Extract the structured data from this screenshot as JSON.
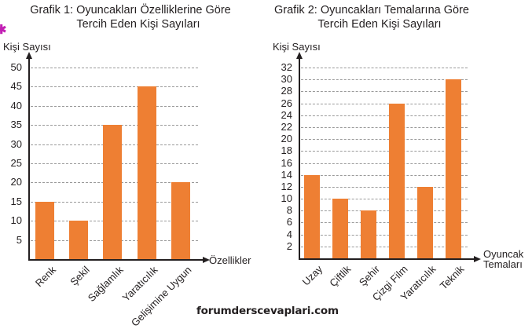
{
  "chart_data": [
    {
      "type": "bar",
      "title": "Grafik 1: Oyuncakları Özelliklerine Göre Tercih Eden Kişi Sayıları",
      "title_lines": [
        "Grafik 1: Oyuncakları Özelliklerine Göre",
        "Tercih Eden Kişi Sayıları"
      ],
      "xlabel": "Özellikler",
      "ylabel": "Kişi Sayısı",
      "categories": [
        "Renk",
        "Şekil",
        "Sağlamlık",
        "Yaratıcılık",
        "Gelişimine Uygun"
      ],
      "values": [
        15,
        10,
        35,
        45,
        20
      ],
      "yticks": [
        5,
        10,
        15,
        20,
        25,
        30,
        35,
        40,
        45,
        50
      ],
      "ylim": [
        0,
        50
      ],
      "grid": true,
      "bar_color": "#ee7f33"
    },
    {
      "type": "bar",
      "title": "Grafik 2: Oyuncakları Temalarına Göre Tercih Eden Kişi Sayıları",
      "title_lines": [
        "Grafik 2: Oyuncakları Temalarına Göre",
        "Tercih Eden Kişi Sayıları"
      ],
      "xlabel": "Oyuncak Temaları",
      "xlabel_lines": [
        "Oyuncak",
        "Temaları"
      ],
      "ylabel": "Kişi Sayısı",
      "categories": [
        "Uzay",
        "Çiftlik",
        "Şehir",
        "Çizgi Film",
        "Yaratıcılık",
        "Teknik"
      ],
      "values": [
        14,
        10,
        8,
        26,
        12,
        30
      ],
      "yticks": [
        2,
        4,
        6,
        8,
        10,
        12,
        14,
        16,
        18,
        20,
        22,
        24,
        26,
        28,
        30,
        32
      ],
      "ylim": [
        0,
        32
      ],
      "grid": true,
      "bar_color": "#ee7f33"
    }
  ],
  "footer": {
    "watermark": "forumderscevaplari.com"
  },
  "decor": {
    "mark": "✱"
  }
}
